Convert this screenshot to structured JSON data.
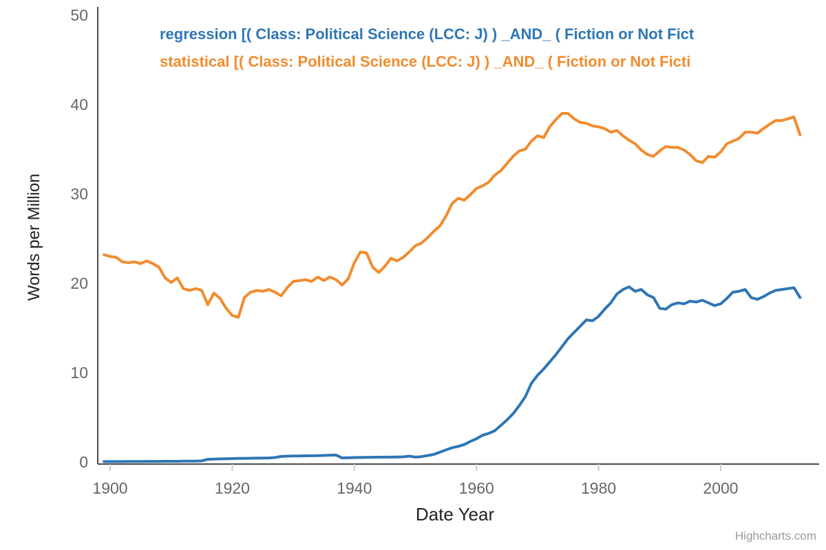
{
  "legend": {
    "series": [
      {
        "label": "regression [( Class: Political Science (LCC: J) ) _AND_ ( Fiction or Not Fict",
        "color": "#2e76b4"
      },
      {
        "label": "statistical [( Class: Political Science (LCC: J) ) _AND_ ( Fiction or Not Ficti",
        "color": "#f28b2d"
      }
    ]
  },
  "credits": "Highcharts.com",
  "axes": {
    "x_title": "Date Year",
    "y_title": "Words per Million",
    "tick_label_color": "#666666",
    "axis_line_color": "#4a4a4a",
    "tick_mark_color": "#c3cede",
    "title_color": "#222222"
  },
  "chart_data": {
    "type": "line",
    "title": "",
    "xlabel": "Date Year",
    "ylabel": "Words per Million",
    "ylim": [
      0,
      50
    ],
    "yticks": [
      0,
      10,
      20,
      30,
      40,
      50
    ],
    "xticks": [
      1900,
      1920,
      1940,
      1960,
      1980,
      2000
    ],
    "grid": false,
    "legend_position": "top",
    "x": [
      1899,
      1900,
      1901,
      1902,
      1903,
      1904,
      1905,
      1906,
      1907,
      1908,
      1909,
      1910,
      1911,
      1912,
      1913,
      1914,
      1915,
      1916,
      1917,
      1918,
      1919,
      1920,
      1921,
      1922,
      1923,
      1924,
      1925,
      1926,
      1927,
      1928,
      1929,
      1930,
      1931,
      1932,
      1933,
      1934,
      1935,
      1936,
      1937,
      1938,
      1939,
      1940,
      1941,
      1942,
      1943,
      1944,
      1945,
      1946,
      1947,
      1948,
      1949,
      1950,
      1951,
      1952,
      1953,
      1954,
      1955,
      1956,
      1957,
      1958,
      1959,
      1960,
      1961,
      1962,
      1963,
      1964,
      1965,
      1966,
      1967,
      1968,
      1969,
      1970,
      1971,
      1972,
      1973,
      1974,
      1975,
      1976,
      1977,
      1978,
      1979,
      1980,
      1981,
      1982,
      1983,
      1984,
      1985,
      1986,
      1987,
      1988,
      1989,
      1990,
      1991,
      1992,
      1993,
      1994,
      1995,
      1996,
      1997,
      1998,
      1999,
      2000,
      2001,
      2002,
      2003,
      2004,
      2005,
      2006,
      2007,
      2008,
      2009,
      2010,
      2011,
      2012,
      2013
    ],
    "series": [
      {
        "name": "regression [( Class: Political Science (LCC: J) ) _AND_ ( Fiction or Not Fiction )]",
        "color": "#2e76b4",
        "values": [
          0.05,
          0.05,
          0.05,
          0.05,
          0.06,
          0.06,
          0.06,
          0.07,
          0.07,
          0.07,
          0.08,
          0.08,
          0.08,
          0.09,
          0.09,
          0.1,
          0.12,
          0.3,
          0.33,
          0.35,
          0.36,
          0.38,
          0.4,
          0.41,
          0.42,
          0.43,
          0.44,
          0.45,
          0.5,
          0.62,
          0.65,
          0.67,
          0.68,
          0.69,
          0.7,
          0.71,
          0.73,
          0.76,
          0.78,
          0.45,
          0.48,
          0.5,
          0.51,
          0.52,
          0.53,
          0.54,
          0.55,
          0.55,
          0.56,
          0.58,
          0.65,
          0.55,
          0.6,
          0.72,
          0.85,
          1.1,
          1.35,
          1.6,
          1.75,
          1.95,
          2.3,
          2.6,
          3.0,
          3.2,
          3.5,
          4.1,
          4.7,
          5.4,
          6.3,
          7.3,
          8.8,
          9.7,
          10.4,
          11.2,
          12.0,
          12.9,
          13.8,
          14.5,
          15.2,
          15.9,
          15.8,
          16.3,
          17.1,
          17.8,
          18.8,
          19.3,
          19.6,
          19.1,
          19.3,
          18.7,
          18.4,
          17.2,
          17.1,
          17.6,
          17.8,
          17.7,
          18.0,
          17.9,
          18.1,
          17.8,
          17.5,
          17.7,
          18.3,
          19.0,
          19.1,
          19.3,
          18.4,
          18.2,
          18.5,
          18.9,
          19.2,
          19.3,
          19.4,
          19.5,
          18.4
        ]
      },
      {
        "name": "statistical [( Class: Political Science (LCC: J) ) _AND_ ( Fiction or Not Fiction )]",
        "color": "#f28b2d",
        "values": [
          23.2,
          23.0,
          22.9,
          22.4,
          22.3,
          22.4,
          22.2,
          22.5,
          22.2,
          21.8,
          20.6,
          20.1,
          20.6,
          19.4,
          19.2,
          19.4,
          19.2,
          17.6,
          18.9,
          18.3,
          17.2,
          16.4,
          16.2,
          18.4,
          19.0,
          19.2,
          19.1,
          19.3,
          19.0,
          18.6,
          19.5,
          20.2,
          20.3,
          20.4,
          20.2,
          20.7,
          20.3,
          20.7,
          20.4,
          19.8,
          20.5,
          22.3,
          23.5,
          23.4,
          21.8,
          21.2,
          21.9,
          22.8,
          22.5,
          22.9,
          23.5,
          24.2,
          24.5,
          25.1,
          25.8,
          26.4,
          27.5,
          28.9,
          29.5,
          29.3,
          29.9,
          30.6,
          30.9,
          31.3,
          32.1,
          32.6,
          33.4,
          34.2,
          34.8,
          35.0,
          35.9,
          36.5,
          36.3,
          37.5,
          38.3,
          39.0,
          39.0,
          38.4,
          38.0,
          37.9,
          37.6,
          37.5,
          37.3,
          36.9,
          37.1,
          36.5,
          36.0,
          35.6,
          34.9,
          34.4,
          34.2,
          34.8,
          35.3,
          35.2,
          35.2,
          34.9,
          34.4,
          33.7,
          33.5,
          34.2,
          34.1,
          34.7,
          35.6,
          35.9,
          36.2,
          36.9,
          36.9,
          36.8,
          37.3,
          37.8,
          38.2,
          38.2,
          38.4,
          38.6,
          36.6
        ]
      }
    ]
  }
}
